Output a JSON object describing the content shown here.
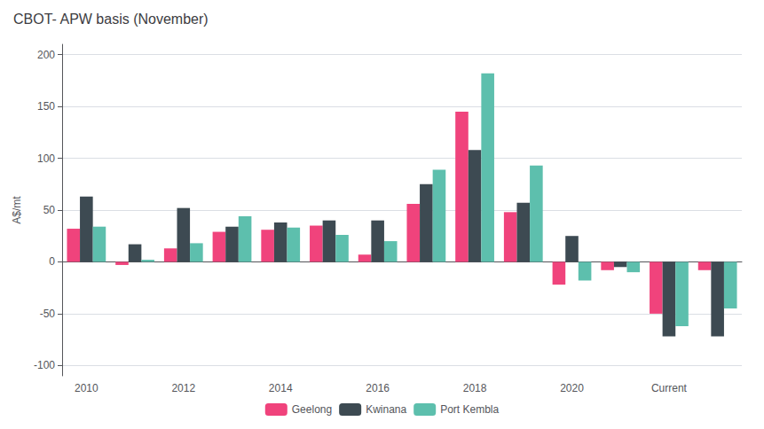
{
  "chart_data": {
    "type": "bar",
    "title": "CBOT- APW basis (November)",
    "ylabel": "A$/mt",
    "categories": [
      "2010",
      null,
      "2012",
      null,
      "2014",
      null,
      "2016",
      null,
      "2018",
      null,
      "2020",
      null,
      "Current",
      null
    ],
    "series": [
      {
        "name": "Geelong",
        "color": "#f0437c",
        "values": [
          32,
          -3,
          13,
          29,
          31,
          35,
          7,
          56,
          145,
          48,
          -22,
          -8,
          -50,
          -8
        ]
      },
      {
        "name": "Kwinana",
        "color": "#3d4a52",
        "values": [
          63,
          17,
          52,
          34,
          38,
          40,
          40,
          75,
          108,
          57,
          25,
          -5,
          -72,
          -72
        ]
      },
      {
        "name": "Port Kembla",
        "color": "#5dbfad",
        "values": [
          34,
          2,
          18,
          44,
          33,
          26,
          20,
          89,
          182,
          93,
          -18,
          -10,
          -62,
          -45
        ]
      }
    ],
    "ylim": [
      -110,
      210
    ],
    "yticks": [
      -100,
      -50,
      0,
      50,
      100,
      150,
      200
    ],
    "grid": true,
    "legend": "bottom"
  }
}
